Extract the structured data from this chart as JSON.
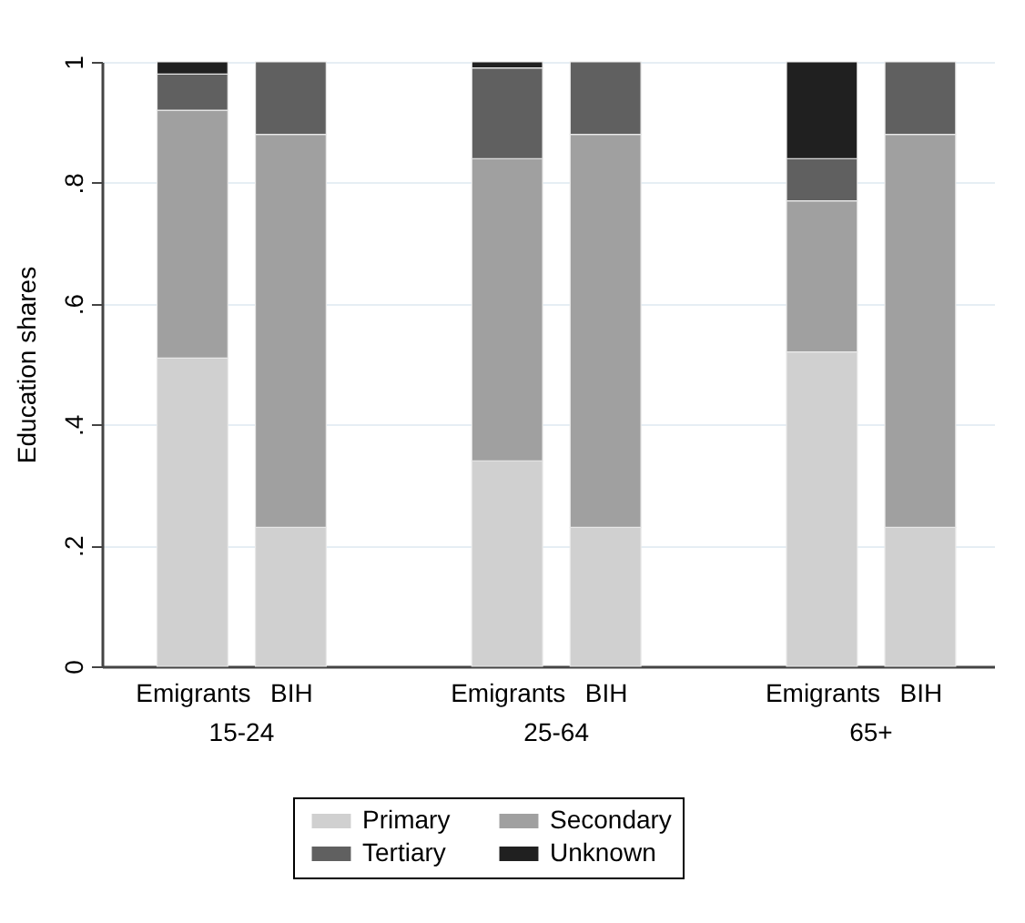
{
  "chart_data": {
    "type": "bar",
    "stacked": true,
    "ylabel": "Education shares",
    "categories": [
      "Emigrants",
      "BIH",
      "Emigrants",
      "BIH",
      "Emigrants",
      "BIH"
    ],
    "series": [
      {
        "name": "Primary",
        "color": "#d0d0d0",
        "values": [
          0.51,
          0.23,
          0.34,
          0.23,
          0.52,
          0.23
        ]
      },
      {
        "name": "Secondary",
        "color": "#a0a0a0",
        "values": [
          0.41,
          0.65,
          0.5,
          0.65,
          0.25,
          0.65
        ]
      },
      {
        "name": "Tertiary",
        "color": "#606060",
        "values": [
          0.06,
          0.12,
          0.15,
          0.12,
          0.07,
          0.12
        ]
      },
      {
        "name": "Unknown",
        "color": "#202020",
        "values": [
          0.02,
          null,
          0.01,
          null,
          0.16,
          null
        ]
      }
    ],
    "annotations": [
      "15-24",
      "25-64",
      "65+"
    ],
    "ylim": [
      0,
      1
    ],
    "yticks": [
      0,
      {
        "value": 0.2,
        "label": ".2"
      },
      {
        "value": 0.4,
        "label": ".4"
      },
      {
        "value": 0.6,
        "label": ".6"
      },
      {
        "value": 0.8,
        "label": ".8"
      },
      1
    ],
    "grid": "y",
    "legend": "bottom"
  }
}
